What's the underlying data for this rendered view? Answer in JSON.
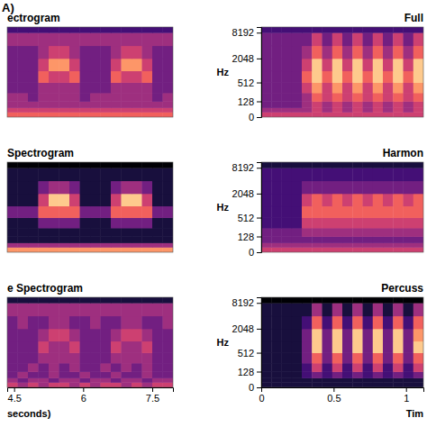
{
  "panel_label": "A)",
  "chart_data": [
    {
      "type": "heatmap",
      "title": "ectrogram",
      "tick_labels": false,
      "xlim": [
        4.35,
        7.95
      ],
      "ylim": [
        0,
        11025
      ],
      "log": "y",
      "zlim": [
        0,
        9
      ],
      "x_edges": [
        4.35,
        4.575,
        4.8,
        5.025,
        5.25,
        5.475,
        5.7,
        5.925,
        6.15,
        6.375,
        6.6,
        6.825,
        7.05,
        7.275,
        7.5,
        7.725,
        7.95
      ],
      "y_edges": [
        0,
        30,
        64,
        128,
        256,
        512,
        1024,
        2048,
        4096,
        8192,
        11025
      ],
      "cells": [
        [
          6,
          6,
          6,
          6,
          6,
          6,
          6,
          6,
          6,
          6,
          6,
          6,
          6,
          6,
          6,
          6
        ],
        [
          5,
          5,
          5,
          5,
          5,
          5,
          5,
          5,
          5,
          5,
          5,
          5,
          5,
          5,
          5,
          5
        ],
        [
          4,
          4,
          4,
          4,
          4,
          4,
          4,
          4,
          4,
          4,
          4,
          4,
          4,
          4,
          4,
          4
        ],
        [
          4,
          4,
          3,
          4,
          4,
          4,
          4,
          3,
          4,
          4,
          4,
          4,
          4,
          4,
          3,
          4
        ],
        [
          3,
          3,
          3,
          4,
          4,
          4,
          4,
          3,
          3,
          3,
          4,
          4,
          4,
          4,
          3,
          3
        ],
        [
          3,
          3,
          3,
          6,
          5,
          5,
          6,
          3,
          3,
          3,
          6,
          5,
          5,
          6,
          3,
          3
        ],
        [
          3,
          3,
          3,
          5,
          7,
          7,
          5,
          3,
          3,
          3,
          5,
          7,
          7,
          5,
          3,
          3
        ],
        [
          3,
          3,
          3,
          4,
          5,
          5,
          4,
          3,
          3,
          3,
          4,
          5,
          5,
          4,
          3,
          3
        ],
        [
          4,
          4,
          4,
          4,
          4,
          4,
          4,
          4,
          4,
          4,
          4,
          4,
          4,
          4,
          4,
          4
        ],
        [
          2,
          2,
          2,
          2,
          2,
          2,
          2,
          2,
          2,
          2,
          2,
          2,
          2,
          2,
          2,
          2
        ]
      ]
    },
    {
      "type": "heatmap",
      "title": "Spectrogram",
      "tick_labels": false,
      "xlim": [
        4.35,
        7.95
      ],
      "ylim": [
        0,
        11025
      ],
      "log": "y",
      "zlim": [
        0,
        9
      ],
      "x_edges": [
        4.35,
        4.575,
        4.8,
        5.025,
        5.25,
        5.475,
        5.7,
        5.925,
        6.15,
        6.375,
        6.6,
        6.825,
        7.05,
        7.275,
        7.5,
        7.725,
        7.95
      ],
      "y_edges": [
        0,
        30,
        64,
        128,
        256,
        512,
        1024,
        2048,
        4096,
        8192,
        11025
      ],
      "cells": [
        [
          7,
          7,
          7,
          7,
          7,
          7,
          7,
          7,
          7,
          7,
          7,
          7,
          7,
          7,
          7,
          7
        ],
        [
          4,
          4,
          4,
          4,
          4,
          4,
          4,
          4,
          4,
          4,
          4,
          4,
          4,
          4,
          4,
          4
        ],
        [
          1,
          1,
          1,
          1,
          1,
          1,
          1,
          1,
          1,
          1,
          1,
          1,
          1,
          1,
          1,
          1
        ],
        [
          1,
          1,
          1,
          1,
          1,
          1,
          1,
          1,
          1,
          1,
          1,
          1,
          1,
          1,
          1,
          1
        ],
        [
          1,
          1,
          1,
          3,
          3,
          3,
          3,
          1,
          1,
          1,
          3,
          3,
          3,
          3,
          1,
          1
        ],
        [
          3,
          3,
          3,
          6,
          6,
          6,
          6,
          3,
          3,
          3,
          6,
          6,
          6,
          6,
          3,
          3
        ],
        [
          1,
          1,
          1,
          5,
          8,
          8,
          5,
          1,
          1,
          1,
          5,
          8,
          8,
          5,
          1,
          1
        ],
        [
          1,
          1,
          1,
          3,
          4,
          4,
          3,
          1,
          1,
          1,
          3,
          4,
          4,
          3,
          1,
          1
        ],
        [
          1,
          1,
          1,
          1,
          1,
          1,
          1,
          1,
          1,
          1,
          1,
          1,
          1,
          1,
          1,
          1
        ],
        [
          0,
          0,
          0,
          0,
          0,
          0,
          0,
          0,
          0,
          0,
          0,
          0,
          0,
          0,
          0,
          0
        ]
      ]
    },
    {
      "type": "heatmap",
      "title": "e Spectrogram",
      "tick_labels": "x",
      "x_label": "seconds)",
      "xlim": [
        4.35,
        7.95
      ],
      "ylim": [
        0,
        11025
      ],
      "log": "y",
      "zlim": [
        0,
        9
      ],
      "xticks": [
        4.5,
        6,
        7.5
      ],
      "x_edges": [
        4.35,
        4.575,
        4.8,
        5.025,
        5.25,
        5.475,
        5.7,
        5.925,
        6.15,
        6.375,
        6.6,
        6.825,
        7.05,
        7.275,
        7.5,
        7.725,
        7.95
      ],
      "y_edges": [
        0,
        30,
        64,
        128,
        256,
        512,
        1024,
        2048,
        4096,
        8192,
        11025
      ],
      "cells": [
        [
          5,
          4,
          5,
          4,
          5,
          5,
          4,
          5,
          4,
          5,
          5,
          4,
          5,
          4,
          5,
          5
        ],
        [
          4,
          3,
          4,
          4,
          3,
          4,
          4,
          3,
          4,
          4,
          3,
          4,
          4,
          3,
          4,
          4
        ],
        [
          3,
          4,
          3,
          3,
          4,
          3,
          3,
          4,
          3,
          3,
          4,
          3,
          3,
          4,
          3,
          3
        ],
        [
          3,
          3,
          4,
          3,
          4,
          3,
          4,
          3,
          3,
          4,
          3,
          4,
          3,
          4,
          3,
          3
        ],
        [
          3,
          3,
          3,
          4,
          4,
          4,
          4,
          3,
          3,
          3,
          4,
          4,
          4,
          4,
          3,
          3
        ],
        [
          3,
          3,
          3,
          5,
          4,
          4,
          5,
          3,
          3,
          3,
          5,
          4,
          4,
          5,
          3,
          3
        ],
        [
          3,
          3,
          3,
          4,
          5,
          5,
          4,
          3,
          3,
          3,
          4,
          5,
          5,
          4,
          3,
          3
        ],
        [
          3,
          4,
          3,
          3,
          4,
          4,
          3,
          3,
          4,
          3,
          3,
          4,
          4,
          3,
          3,
          4
        ],
        [
          4,
          4,
          4,
          4,
          4,
          4,
          4,
          4,
          4,
          4,
          4,
          4,
          4,
          4,
          4,
          4
        ],
        [
          1,
          1,
          1,
          1,
          1,
          1,
          1,
          1,
          1,
          1,
          1,
          1,
          1,
          1,
          1,
          1
        ]
      ]
    },
    {
      "type": "heatmap",
      "title": "Full",
      "tick_labels": "y",
      "y_label": "Hz",
      "xlim": [
        0,
        1.12
      ],
      "ylim": [
        0,
        11025
      ],
      "log": "y",
      "zlim": [
        0,
        9
      ],
      "yticks": [
        0,
        128,
        512,
        2048,
        8192
      ],
      "x_edges": [
        0,
        0.07,
        0.14,
        0.21,
        0.28,
        0.35,
        0.42,
        0.49,
        0.56,
        0.63,
        0.7,
        0.77,
        0.84,
        0.91,
        0.98,
        1.05,
        1.12
      ],
      "y_edges": [
        0,
        30,
        64,
        128,
        256,
        512,
        1024,
        2048,
        4096,
        8192,
        11025
      ],
      "cells": [
        [
          5,
          5,
          5,
          5,
          5,
          5,
          5,
          5,
          5,
          5,
          5,
          5,
          5,
          5,
          5,
          5
        ],
        [
          4,
          4,
          4,
          4,
          4,
          5,
          4,
          5,
          4,
          5,
          4,
          5,
          4,
          5,
          4,
          5
        ],
        [
          3,
          3,
          3,
          3,
          4,
          5,
          4,
          5,
          4,
          5,
          4,
          5,
          4,
          5,
          4,
          5
        ],
        [
          3,
          3,
          3,
          3,
          4,
          6,
          5,
          6,
          5,
          6,
          5,
          6,
          5,
          6,
          5,
          6
        ],
        [
          3,
          3,
          3,
          3,
          5,
          7,
          5,
          7,
          5,
          7,
          5,
          7,
          5,
          7,
          5,
          7
        ],
        [
          3,
          3,
          3,
          3,
          6,
          8,
          6,
          8,
          6,
          8,
          6,
          8,
          6,
          8,
          6,
          8
        ],
        [
          3,
          3,
          3,
          3,
          5,
          8,
          5,
          8,
          5,
          8,
          5,
          8,
          5,
          8,
          5,
          8
        ],
        [
          3,
          3,
          3,
          3,
          4,
          6,
          4,
          6,
          4,
          6,
          4,
          6,
          4,
          6,
          4,
          6
        ],
        [
          3,
          3,
          3,
          3,
          3,
          5,
          3,
          5,
          3,
          5,
          3,
          5,
          3,
          5,
          3,
          5
        ],
        [
          2,
          2,
          2,
          2,
          2,
          2,
          2,
          2,
          2,
          2,
          2,
          2,
          2,
          2,
          2,
          2
        ]
      ]
    },
    {
      "type": "heatmap",
      "title": "Harmon",
      "tick_labels": "y",
      "y_label": "Hz",
      "xlim": [
        0,
        1.12
      ],
      "ylim": [
        0,
        11025
      ],
      "log": "y",
      "zlim": [
        0,
        9
      ],
      "yticks": [
        0,
        128,
        512,
        2048,
        8192
      ],
      "x_edges": [
        0,
        0.07,
        0.14,
        0.21,
        0.28,
        0.35,
        0.42,
        0.49,
        0.56,
        0.63,
        0.7,
        0.77,
        0.84,
        0.91,
        0.98,
        1.05,
        1.12
      ],
      "y_edges": [
        0,
        30,
        64,
        128,
        256,
        512,
        1024,
        2048,
        4096,
        8192,
        11025
      ],
      "cells": [
        [
          5,
          5,
          5,
          5,
          5,
          5,
          5,
          5,
          5,
          5,
          5,
          5,
          5,
          5,
          5,
          5
        ],
        [
          4,
          4,
          4,
          4,
          4,
          4,
          4,
          4,
          4,
          4,
          4,
          4,
          4,
          4,
          4,
          4
        ],
        [
          3,
          3,
          3,
          3,
          3,
          3,
          3,
          3,
          3,
          3,
          3,
          3,
          3,
          3,
          3,
          3
        ],
        [
          3,
          3,
          3,
          3,
          4,
          4,
          4,
          4,
          4,
          4,
          4,
          4,
          4,
          4,
          4,
          4
        ],
        [
          2,
          2,
          2,
          2,
          5,
          5,
          5,
          5,
          5,
          5,
          5,
          5,
          5,
          5,
          5,
          5
        ],
        [
          2,
          2,
          2,
          2,
          6,
          6,
          6,
          6,
          6,
          6,
          6,
          6,
          6,
          6,
          6,
          6
        ],
        [
          2,
          2,
          2,
          2,
          5,
          6,
          5,
          6,
          5,
          6,
          5,
          6,
          5,
          6,
          5,
          6
        ],
        [
          2,
          2,
          2,
          2,
          3,
          3,
          3,
          3,
          3,
          3,
          3,
          3,
          3,
          3,
          3,
          3
        ],
        [
          2,
          2,
          2,
          2,
          2,
          2,
          2,
          2,
          2,
          2,
          2,
          2,
          2,
          2,
          2,
          2
        ],
        [
          1,
          1,
          1,
          1,
          1,
          1,
          1,
          1,
          1,
          1,
          1,
          1,
          1,
          1,
          1,
          1
        ]
      ]
    },
    {
      "type": "heatmap",
      "title": "Percuss",
      "tick_labels": true,
      "y_label": "Hz",
      "x_label": "Tim",
      "xlim": [
        0,
        1.12
      ],
      "ylim": [
        0,
        11025
      ],
      "log": "y",
      "zlim": [
        0,
        9
      ],
      "xticks": [
        0,
        0.5,
        1
      ],
      "yticks": [
        0,
        128,
        512,
        2048,
        8192
      ],
      "x_edges": [
        0,
        0.07,
        0.14,
        0.21,
        0.28,
        0.35,
        0.42,
        0.49,
        0.56,
        0.63,
        0.7,
        0.77,
        0.84,
        0.91,
        0.98,
        1.05,
        1.12
      ],
      "y_edges": [
        0,
        30,
        64,
        128,
        256,
        512,
        1024,
        2048,
        4096,
        8192,
        11025
      ],
      "cells": [
        [
          1,
          1,
          1,
          1,
          1,
          1,
          1,
          1,
          1,
          1,
          1,
          1,
          1,
          1,
          1,
          1
        ],
        [
          1,
          1,
          1,
          1,
          1,
          1,
          1,
          1,
          1,
          1,
          1,
          1,
          1,
          1,
          1,
          1
        ],
        [
          1,
          1,
          1,
          1,
          2,
          3,
          2,
          3,
          2,
          3,
          2,
          3,
          2,
          3,
          2,
          3
        ],
        [
          1,
          1,
          1,
          1,
          2,
          5,
          2,
          5,
          2,
          5,
          2,
          5,
          2,
          5,
          2,
          5
        ],
        [
          1,
          1,
          1,
          1,
          3,
          6,
          3,
          6,
          3,
          6,
          3,
          6,
          3,
          6,
          3,
          6
        ],
        [
          1,
          1,
          1,
          1,
          3,
          8,
          3,
          8,
          3,
          8,
          3,
          8,
          3,
          8,
          3,
          8
        ],
        [
          1,
          1,
          1,
          1,
          3,
          8,
          3,
          8,
          3,
          8,
          3,
          8,
          3,
          8,
          3,
          7
        ],
        [
          1,
          1,
          1,
          1,
          2,
          6,
          2,
          6,
          2,
          6,
          2,
          6,
          2,
          6,
          2,
          6
        ],
        [
          1,
          1,
          1,
          1,
          1,
          4,
          1,
          4,
          1,
          4,
          1,
          4,
          1,
          4,
          1,
          4
        ],
        [
          0,
          0,
          0,
          0,
          0,
          0,
          0,
          0,
          0,
          0,
          0,
          0,
          0,
          0,
          0,
          0
        ]
      ]
    }
  ]
}
